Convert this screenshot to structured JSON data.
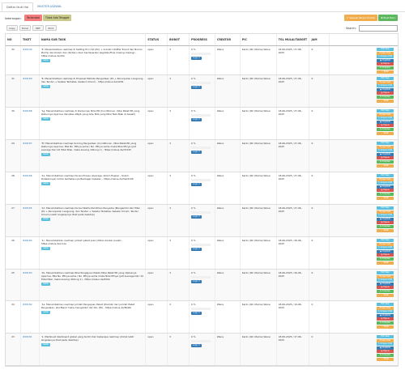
{
  "tabs": [
    {
      "label": "Daftar Ikuti Hal"
    },
    {
      "label": "MASTER JADWAL"
    }
  ],
  "keterangan": "keterangan:",
  "legend": [
    {
      "label": "Terlambat",
      "color": "#f47c7c"
    },
    {
      "label": "Tidak Ada Tenggat",
      "color": "#c9c98a"
    }
  ],
  "top_buttons": [
    {
      "label": "✔ Selesai Tanpa Tindak",
      "color": "#f0ad4e"
    },
    {
      "label": "✚ Buat Baru",
      "color": "#5cb85c"
    }
  ],
  "export_buttons": [
    "Copy",
    "Excel",
    "PDF",
    "Print"
  ],
  "search": {
    "label": "Search:",
    "value": ""
  },
  "columns": [
    "NO",
    "TIKET",
    "NAMA SUB TASK",
    "STATUS",
    "BOBOT",
    "PROGRESS",
    "CREATOR",
    "PIC",
    "TGL MULAI/TARGET",
    "JAM",
    ""
  ],
  "action_buttons": [
    {
      "label": "Edit Task",
      "color": "#5bc0de"
    },
    {
      "label": "Proses Task",
      "color": "#f0ad4e"
    },
    {
      "label": "✎ Simpan Edit",
      "color": "#5bc0de"
    },
    {
      "label": "▣ Duplikat",
      "color": "#337ab7"
    },
    {
      "label": "▤ Hapus",
      "color": "#d9534f"
    },
    {
      "label": "⇄ Arsipkan",
      "color": "#5cb85c"
    },
    {
      "label": "✓ Batal",
      "color": "#f0ad4e"
    }
  ],
  "rows": [
    {
      "no": "32",
      "tiket": "#28190",
      "nama": "'8. Menambahkan realmap di Setting Pin Unit (PC) + Industri (Daftar Event dan Nomor PinCS) dan Kolom dan (terbaru Akar berdasarkan kegiatan/flow masing-masing) - https://rebus.de/ddc",
      "detail": "detail",
      "status": "open",
      "bobot": "3",
      "progress": "0 %",
      "log": "Logs ↺",
      "creator": "Wana",
      "pic": "Karlin (RC Utama) Wana",
      "tgl": "18-06-2025 / 27-06-2025",
      "jam": "0"
    },
    {
      "no": "31",
      "tiket": "#28189",
      "nama": "'8. Menambahkan realmap di Proposal Metode Pengadaan (PL + Penunjukan Langsung, dan Tender + Seleksi Terbatas, Seleksi Umum) - https://rebus.de/d236",
      "detail": "detail",
      "status": "open",
      "bobot": "3",
      "progress": "0 %",
      "log": "Logs ↺",
      "creator": "Wana",
      "pic": "Karlin (RC Utama) Wana",
      "tgl": "18-06-2025 / 27-06-2025",
      "jam": "0"
    },
    {
      "no": "30",
      "tiket": "#28188",
      "nama": "'1g. Menambahkan realmap di Komponen Nilai PR (Conditional - Nilai Paket PR yang statusnya Approve dan/atau Wajib yang Ada, Bila yang Nilai Teks Nilai di bawah)",
      "detail": "detail",
      "status": "open",
      "bobot": "3",
      "progress": "0 %",
      "log": "Logs ↺",
      "creator": "Wana",
      "pic": "Karlin (RC Utama) Wana",
      "tgl": "18-06-2025 / 27-06-2025",
      "jam": "0"
    },
    {
      "no": "29",
      "tiket": "#28187",
      "nama": "'5f. Menambahkan realmap Scoring Pengadaan (Conditional - Nilai Paket PR yang statusnya Approve, Bila No. PPnya sama / No. PPnya sama maka Nilai PPnya (jelt average Dari 10 Total Nilai, maka kosong diiitung 1) - https://rebus.de/d7dd5",
      "detail": "detail",
      "status": "open",
      "bobot": "3",
      "progress": "0 %",
      "log": "Logs ↺",
      "creator": "Wana",
      "pic": "Karlin (RC Utama) Wana",
      "tgl": "18-06-2025 / 27-06-2025",
      "jam": "0"
    },
    {
      "no": "28",
      "tiket": "#28186",
      "nama": "'1e. Menambahkan realmap Durasi Proses (Average, Kolom Eseper - Kolom Didalamnya) Untuk kelihatannya Berbagai Cetakan - https://rebus.de/3ed4136",
      "detail": "detail",
      "status": "open",
      "bobot": "3",
      "progress": "0 %",
      "log": "Logs ↺",
      "creator": "Wana",
      "pic": "Karlin (RC Utama) Wana",
      "tgl": "18-06-2025 / 27-06-2025",
      "jam": "0"
    },
    {
      "no": "27",
      "tiket": "#28185",
      "nama": "'1d. Menambahkan realmap Durasi Waktu Pemilihan Penyedia (Mengambil dari filter (PL + Penunjukan Langsung, dan Tender + Seleksi Terbatas, Seleksi Umum, Tender Umum) Lebih lengkapnya lihat pada desktop)",
      "detail": "detail",
      "status": "open",
      "bobot": "3",
      "progress": "0 %",
      "log": "Logs ↺",
      "creator": "Wana",
      "pic": "Karlin (RC Utama) Wana",
      "tgl": "18-06-2025 / 27-06-2025",
      "jam": "0"
    },
    {
      "no": "26",
      "tiket": "#28184",
      "nama": "'1c. Menambahkan realmap jumlah paket pula (dilkan kanker pusat) - https://rebus.de/c11a",
      "detail": "detail",
      "status": "open",
      "bobot": "3",
      "progress": "0 %",
      "log": "Logs ↺",
      "creator": "Wana",
      "pic": "Karlin (RC Utama) Wana",
      "tgl": "18-06-2025 / 26-06-2025",
      "jam": "0"
    },
    {
      "no": "25",
      "tiket": "#28183",
      "nama": "'1b. Menambahkan realmap Nilai Pengajuan Paket (Nilai Paket PR yang statusnya Approve, Bila No. PPnya sama / No. PPnya sama maka Nilai PPnya (jelt average Dari 10 Total Nilai, maka kosong diiitung 1) - https://rebus.de/9dbb",
      "detail": "detail",
      "status": "open",
      "bobot": "3",
      "progress": "0 %",
      "log": "Logs ↺",
      "creator": "Wana",
      "pic": "Karlin (RC Utama) Wana",
      "tgl": "18-06-2025 / 26-06-2025",
      "jam": "0"
    },
    {
      "no": "24",
      "tiket": "#28182",
      "nama": "'1a. Menambahkan realmap Jumlah Pengajuan Paket (Diambil dari jumlah Paket Pengadaan, jika Blank maka mengambil dari No. PR) - https://rebus.de/f6ddb",
      "detail": "detail",
      "status": "open",
      "bobot": "3",
      "progress": "0 %",
      "log": "Logs ↺",
      "creator": "Wana",
      "pic": "Karlin (RC Utama) Wana",
      "tgl": "18-06-2025 / 19-06-2025",
      "jam": "0"
    },
    {
      "no": "23",
      "tiket": "#28181",
      "nama": "'1. Membuat dashboard global yang terdiri dari beberapa realmap (Untuk lebih lengkapnya lihat pada desktop)",
      "detail": "detail",
      "status": "open",
      "bobot": "3",
      "progress": "0 %",
      "log": "Logs ↺",
      "creator": "Wana",
      "pic": "Karlin (RC Utama) Wana",
      "tgl": "18-06-2025 / 27-06-2025",
      "jam": "0"
    }
  ]
}
